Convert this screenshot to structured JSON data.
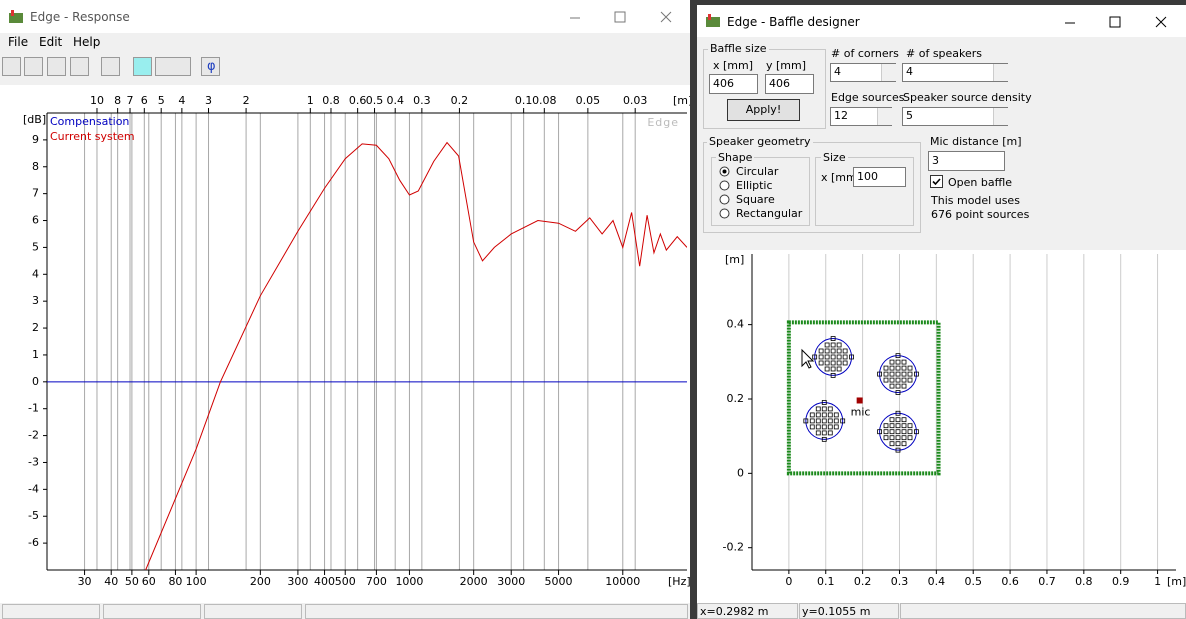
{
  "chart_data": [
    {
      "type": "line",
      "xlabel": "[Hz]",
      "ylabel": "[dB]",
      "x2label": "[m]",
      "watermark": "Edge",
      "xscale": "log",
      "xlim": [
        20,
        20000
      ],
      "ylim": [
        -7,
        10
      ],
      "xticks": [
        30,
        40,
        50,
        60,
        80,
        100,
        200,
        300,
        400,
        500,
        700,
        1000,
        2000,
        3000,
        5000,
        10000
      ],
      "yticks": [
        9,
        8,
        7,
        6,
        5,
        4,
        3,
        2,
        1,
        0,
        -1,
        -2,
        -3,
        -4,
        -5,
        -6
      ],
      "x2lim": [
        17.15,
        0.01715
      ],
      "x2ticks": [
        10,
        8,
        7,
        6,
        5,
        4,
        3,
        2,
        1,
        0.8,
        0.6,
        0.5,
        0.4,
        0.3,
        0.2,
        0.1,
        0.08,
        0.05,
        0.03
      ],
      "grid": true,
      "series": [
        {
          "name": "Compensation",
          "color": "#0000c0",
          "x": [
            20,
            20000
          ],
          "values": [
            0,
            0
          ]
        },
        {
          "name": "Current system",
          "color": "#d00000",
          "x": [
            58,
            100,
            130,
            200,
            300,
            400,
            500,
            600,
            700,
            800,
            900,
            1000,
            1100,
            1300,
            1500,
            1700,
            2000,
            2200,
            2500,
            3000,
            4000,
            5000,
            6000,
            7000,
            8000,
            9000,
            10000,
            11000,
            12000,
            13000,
            14000,
            15000,
            16000,
            18000,
            20000
          ],
          "values": [
            -7,
            -2.5,
            0,
            3.2,
            5.6,
            7.2,
            8.3,
            8.85,
            8.8,
            8.3,
            7.5,
            6.95,
            7.1,
            8.2,
            8.9,
            8.4,
            5.2,
            4.5,
            5.0,
            5.5,
            6.0,
            5.9,
            5.6,
            6.1,
            5.5,
            6.0,
            5.0,
            6.3,
            4.3,
            6.2,
            4.8,
            5.5,
            4.9,
            5.4,
            5.0
          ]
        }
      ]
    },
    {
      "type": "scatter",
      "xlabel": "[m]",
      "ylabel": "[m]",
      "xlim": [
        -0.1,
        1.05
      ],
      "ylim": [
        -0.26,
        0.59
      ],
      "xticks": [
        0,
        0.1,
        0.2,
        0.3,
        0.4,
        0.5,
        0.6,
        0.7,
        0.8,
        0.9,
        1
      ],
      "yticks": [
        0.4,
        0.2,
        0,
        -0.2
      ],
      "grid": true,
      "speakers": {
        "x": [
          0.12,
          0.296,
          0.096,
          0.296
        ],
        "y": [
          0.313,
          0.267,
          0.141,
          0.112
        ]
      },
      "mic": {
        "name": "mic",
        "x": 0.192,
        "y": 0.196
      }
    }
  ],
  "ui": {
    "response": {
      "title": "Edge - Response",
      "menu": [
        "File",
        "Edit",
        "Help"
      ],
      "phi": "φ"
    },
    "baffle": {
      "title": "Edge - Baffle designer",
      "baffle_size": {
        "label": "Baffle size",
        "x_label": "x [mm]",
        "y_label": "y [mm]",
        "x": 406,
        "y": 406,
        "button": "Apply!"
      },
      "corners": {
        "label": "# of corners",
        "value": 4
      },
      "speakers": {
        "label": "# of speakers",
        "value": 4
      },
      "edge_sources": {
        "label": "Edge sources",
        "value": 12
      },
      "density": {
        "label": "Speaker source density",
        "value": 5
      },
      "geometry": {
        "label": "Speaker geometry",
        "shape_label": "Shape",
        "shapes": [
          "Circular",
          "Elliptic",
          "Square",
          "Rectangular"
        ],
        "selected": 0,
        "size_label": "Size",
        "size_x_label": "x [mm]",
        "size_x": 100
      },
      "mic_distance": {
        "label": "Mic distance [m]",
        "value": 3
      },
      "open_baffle": {
        "label": "Open baffle",
        "checked": true
      },
      "info": [
        "This model uses",
        "676 point sources"
      ],
      "status": [
        "x=0.2982 m",
        "y=0.1055 m"
      ]
    }
  }
}
